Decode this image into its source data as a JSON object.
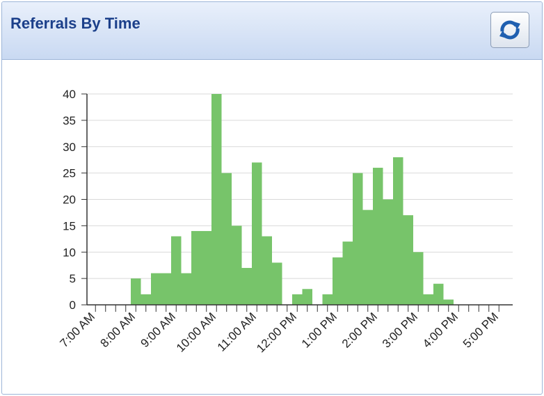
{
  "chart_data": {
    "type": "bar",
    "title": "Referrals By Time",
    "categories": [
      "7:00 AM",
      null,
      null,
      null,
      "8:00 AM",
      null,
      null,
      null,
      "9:00 AM",
      null,
      null,
      null,
      "10:00 AM",
      null,
      null,
      null,
      "11:00 AM",
      null,
      null,
      null,
      "12:00 PM",
      null,
      null,
      null,
      "1:00 PM",
      null,
      null,
      null,
      "2:00 PM",
      null,
      null,
      null,
      "3:00 PM",
      null,
      null,
      null,
      "4:00 PM",
      null,
      null,
      null,
      "5:00 PM"
    ],
    "values": [
      0,
      0,
      0,
      0,
      5,
      2,
      6,
      6,
      13,
      6,
      14,
      14,
      40,
      25,
      15,
      7,
      27,
      13,
      8,
      0,
      2,
      3,
      0,
      2,
      9,
      12,
      25,
      18,
      26,
      20,
      28,
      17,
      10,
      2,
      4,
      1,
      0,
      0,
      0,
      0,
      0
    ],
    "color": "#77c46a",
    "ylim": [
      0,
      40
    ],
    "yticks": [
      0,
      5,
      10,
      15,
      20,
      25,
      30,
      35,
      40
    ],
    "grid": true
  }
}
